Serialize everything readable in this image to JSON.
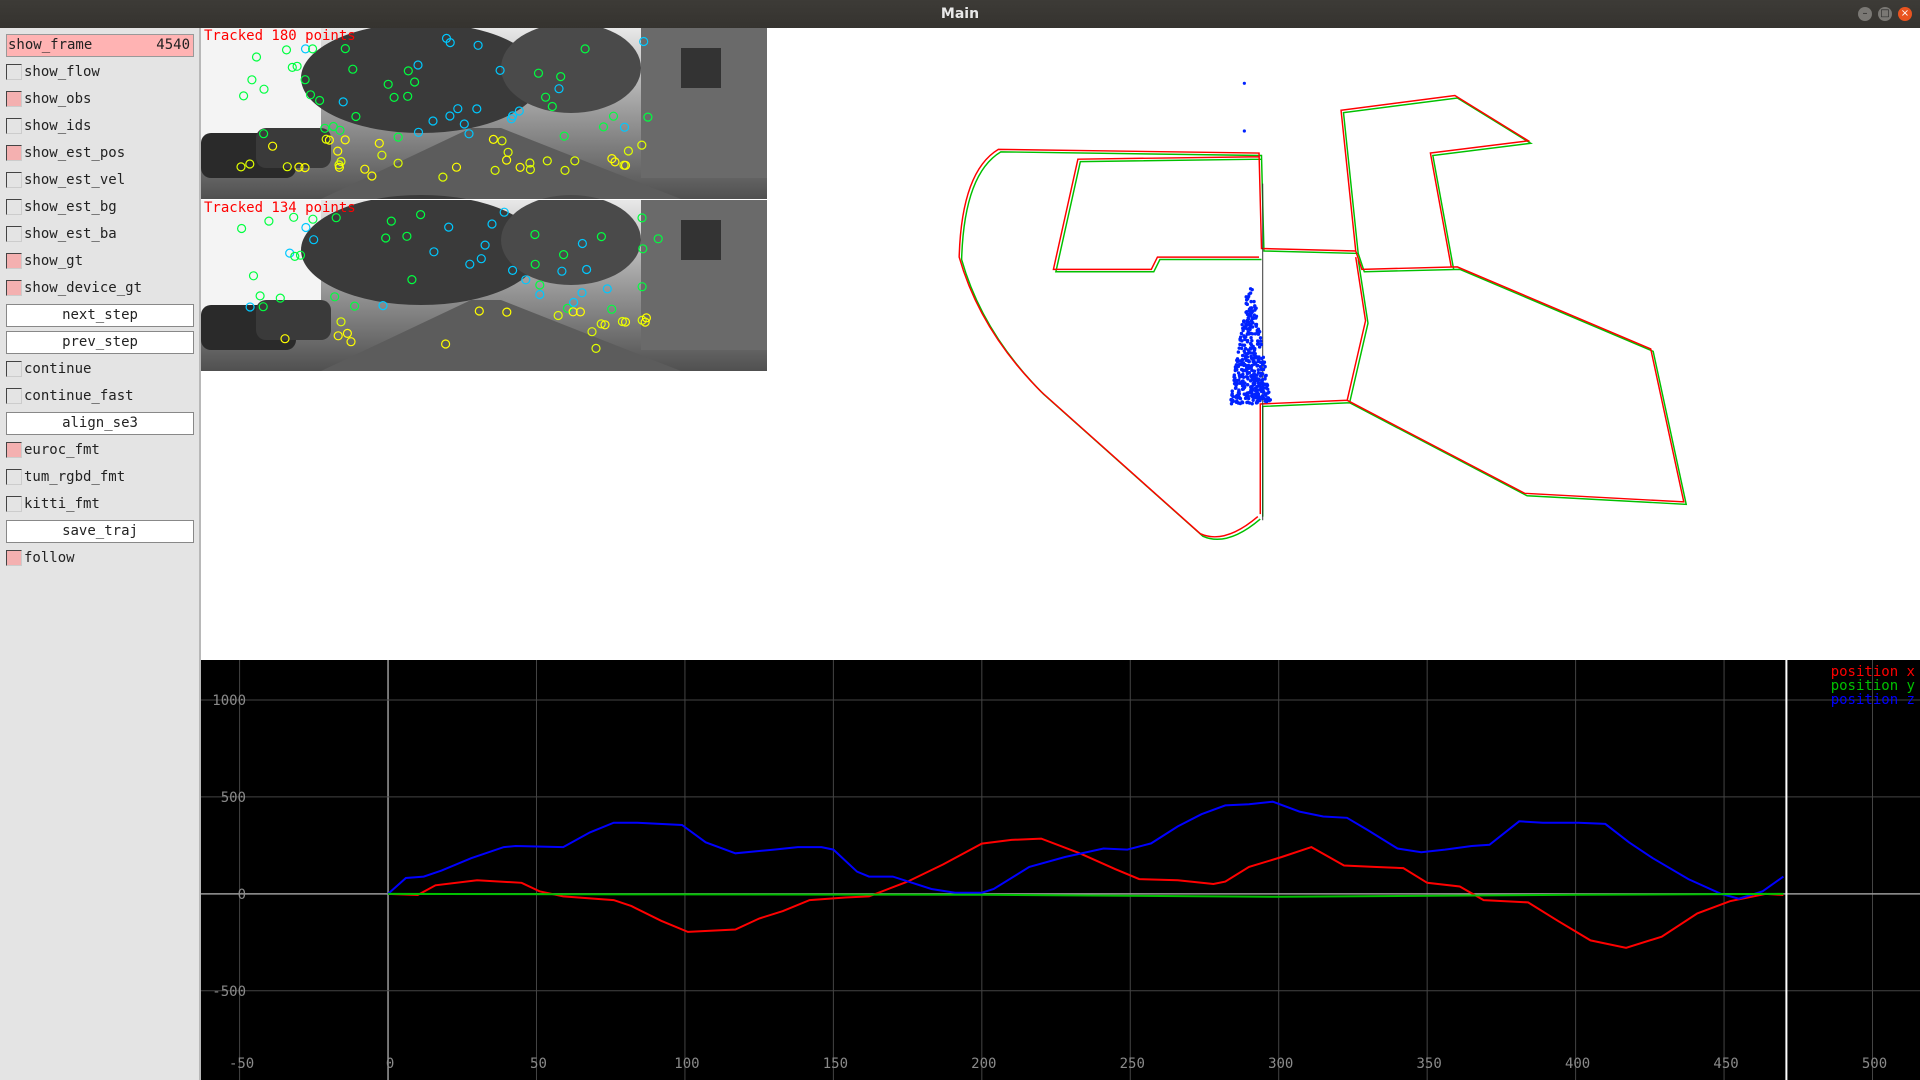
{
  "window": {
    "title": "Main",
    "controls": [
      "minimize",
      "maximize",
      "close"
    ]
  },
  "sidebar": {
    "items": [
      {
        "type": "value",
        "label": "show_frame",
        "value": "4540"
      },
      {
        "type": "checkbox",
        "label": "show_flow",
        "checked": false
      },
      {
        "type": "checkbox",
        "label": "show_obs",
        "checked": true
      },
      {
        "type": "checkbox",
        "label": "show_ids",
        "checked": false
      },
      {
        "type": "checkbox",
        "label": "show_est_pos",
        "checked": true
      },
      {
        "type": "checkbox",
        "label": "show_est_vel",
        "checked": false
      },
      {
        "type": "checkbox",
        "label": "show_est_bg",
        "checked": false
      },
      {
        "type": "checkbox",
        "label": "show_est_ba",
        "checked": false
      },
      {
        "type": "checkbox",
        "label": "show_gt",
        "checked": true
      },
      {
        "type": "checkbox",
        "label": "show_device_gt",
        "checked": true
      },
      {
        "type": "button",
        "label": "next_step"
      },
      {
        "type": "button",
        "label": "prev_step"
      },
      {
        "type": "checkbox",
        "label": "continue",
        "checked": false
      },
      {
        "type": "checkbox",
        "label": "continue_fast",
        "checked": false
      },
      {
        "type": "button",
        "label": "align_se3"
      },
      {
        "type": "checkbox",
        "label": "euroc_fmt",
        "checked": true
      },
      {
        "type": "checkbox",
        "label": "tum_rgbd_fmt",
        "checked": false
      },
      {
        "type": "checkbox",
        "label": "kitti_fmt",
        "checked": false
      },
      {
        "type": "button",
        "label": "save_traj"
      },
      {
        "type": "checkbox",
        "label": "follow",
        "checked": true
      }
    ]
  },
  "cameras": [
    {
      "label": "Tracked 180 points"
    },
    {
      "label": "Tracked 134 points"
    }
  ],
  "map": {
    "trajectory_colors": {
      "estimate": "#ff0000",
      "ground_truth": "#00c000",
      "points": "#0000ff"
    }
  },
  "chart_data": {
    "type": "line",
    "xlim": [
      -63,
      516
    ],
    "ylim": [
      -960,
      1206
    ],
    "xticks": [
      -50,
      0,
      50,
      100,
      150,
      200,
      250,
      300,
      350,
      400,
      450,
      500
    ],
    "yticks": [
      -500,
      0,
      500,
      1000
    ],
    "grid": true,
    "legend_placement": "top-right",
    "current_marker_x": 471,
    "series": [
      {
        "name": "position x",
        "color": "#ff0000",
        "points": [
          [
            0,
            0
          ],
          [
            10,
            -6
          ],
          [
            16,
            44
          ],
          [
            30,
            70
          ],
          [
            45,
            57
          ],
          [
            51,
            13
          ],
          [
            59,
            -13
          ],
          [
            76,
            -32
          ],
          [
            82,
            -63
          ],
          [
            92,
            -139
          ],
          [
            101,
            -196
          ],
          [
            117,
            -184
          ],
          [
            125,
            -127
          ],
          [
            133,
            -89
          ],
          [
            142,
            -32
          ],
          [
            154,
            -19
          ],
          [
            162,
            -13
          ],
          [
            175,
            63
          ],
          [
            187,
            152
          ],
          [
            200,
            259
          ],
          [
            210,
            278
          ],
          [
            220,
            285
          ],
          [
            233,
            209
          ],
          [
            245,
            127
          ],
          [
            253,
            76
          ],
          [
            266,
            70
          ],
          [
            278,
            51
          ],
          [
            282,
            63
          ],
          [
            290,
            139
          ],
          [
            301,
            190
          ],
          [
            311,
            241
          ],
          [
            322,
            146
          ],
          [
            332,
            139
          ],
          [
            342,
            133
          ],
          [
            350,
            57
          ],
          [
            361,
            38
          ],
          [
            369,
            -32
          ],
          [
            384,
            -44
          ],
          [
            394,
            -139
          ],
          [
            405,
            -240
          ],
          [
            417,
            -278
          ],
          [
            429,
            -221
          ],
          [
            441,
            -101
          ],
          [
            452,
            -38
          ],
          [
            464,
            0
          ],
          [
            470,
            -6
          ]
        ]
      },
      {
        "name": "position y",
        "color": "#00c000",
        "points": [
          [
            0,
            0
          ],
          [
            100,
            -3
          ],
          [
            200,
            -5
          ],
          [
            300,
            -15
          ],
          [
            400,
            -5
          ],
          [
            470,
            0
          ]
        ]
      },
      {
        "name": "position z",
        "color": "#0000ff",
        "points": [
          [
            0,
            0
          ],
          [
            6,
            82
          ],
          [
            12,
            89
          ],
          [
            18,
            120
          ],
          [
            28,
            184
          ],
          [
            39,
            241
          ],
          [
            43,
            247
          ],
          [
            59,
            241
          ],
          [
            68,
            317
          ],
          [
            76,
            367
          ],
          [
            84,
            367
          ],
          [
            99,
            355
          ],
          [
            107,
            266
          ],
          [
            117,
            209
          ],
          [
            130,
            228
          ],
          [
            138,
            241
          ],
          [
            146,
            241
          ],
          [
            150,
            228
          ],
          [
            158,
            114
          ],
          [
            162,
            89
          ],
          [
            170,
            89
          ],
          [
            183,
            25
          ],
          [
            191,
            6
          ],
          [
            200,
            6
          ],
          [
            204,
            25
          ],
          [
            216,
            139
          ],
          [
            228,
            190
          ],
          [
            241,
            234
          ],
          [
            249,
            228
          ],
          [
            257,
            260
          ],
          [
            266,
            348
          ],
          [
            274,
            411
          ],
          [
            282,
            456
          ],
          [
            290,
            462
          ],
          [
            298,
            475
          ],
          [
            307,
            424
          ],
          [
            315,
            399
          ],
          [
            323,
            392
          ],
          [
            330,
            329
          ],
          [
            340,
            234
          ],
          [
            348,
            215
          ],
          [
            356,
            228
          ],
          [
            365,
            247
          ],
          [
            371,
            253
          ],
          [
            381,
            374
          ],
          [
            389,
            367
          ],
          [
            401,
            367
          ],
          [
            410,
            361
          ],
          [
            418,
            266
          ],
          [
            426,
            184
          ],
          [
            438,
            76
          ],
          [
            449,
            0
          ],
          [
            455,
            -25
          ],
          [
            463,
            13
          ],
          [
            470,
            89
          ]
        ]
      }
    ]
  }
}
